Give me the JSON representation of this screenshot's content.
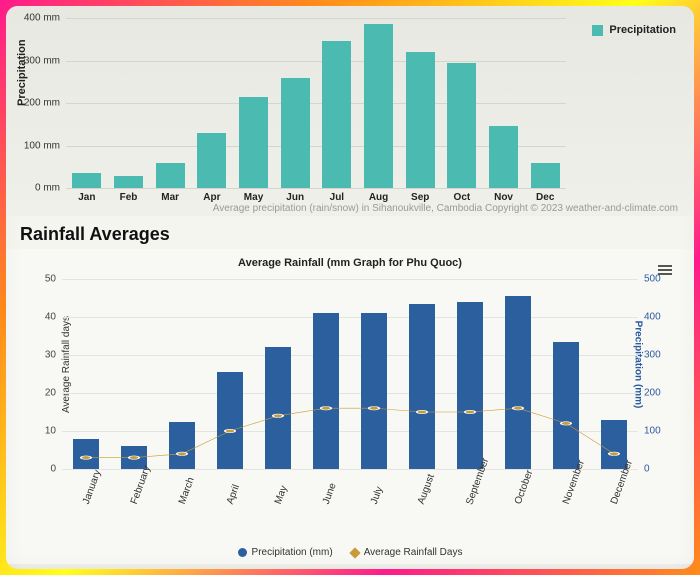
{
  "top_chart": {
    "type": "bar",
    "yaxis_label": "Precipitation",
    "legend_label": "Precipitation",
    "bar_color": "#4bbab0",
    "grid_color": "#d5d5cf",
    "ylim_max": 400,
    "ytick_step": 100,
    "ytick_unit": " mm",
    "categories": [
      "Jan",
      "Feb",
      "Mar",
      "Apr",
      "May",
      "Jun",
      "Jul",
      "Aug",
      "Sep",
      "Oct",
      "Nov",
      "Dec"
    ],
    "values": [
      35,
      28,
      58,
      130,
      215,
      260,
      345,
      385,
      320,
      295,
      145,
      60
    ],
    "caption": "Average precipitation (rain/snow) in Sihanoukville, Cambodia   Copyright © 2023  weather-and-climate.com"
  },
  "section_title": "Rainfall Averages",
  "bottom_chart": {
    "type": "bar+line",
    "title": "Average Rainfall (mm Graph for Phu Quoc)",
    "bar_color": "#2c5f9e",
    "line_color": "#c79a3a",
    "grid_color": "#e5e5e0",
    "categories": [
      "January",
      "February",
      "March",
      "April",
      "May",
      "June",
      "July",
      "August",
      "September",
      "October",
      "November",
      "December"
    ],
    "precipitation_mm": [
      80,
      60,
      125,
      255,
      320,
      410,
      410,
      435,
      440,
      455,
      335,
      130
    ],
    "rainfall_days": [
      3,
      3,
      4,
      10,
      14,
      16,
      16,
      15,
      15,
      16,
      12,
      4
    ],
    "left_axis": {
      "label": "Average Rainfall days",
      "max": 50,
      "step": 10
    },
    "right_axis": {
      "label": "Precipitation (mm)",
      "max": 500,
      "step": 100
    },
    "legend": {
      "series1": "Precipitation (mm)",
      "series2": "Average Rainfall Days"
    }
  }
}
